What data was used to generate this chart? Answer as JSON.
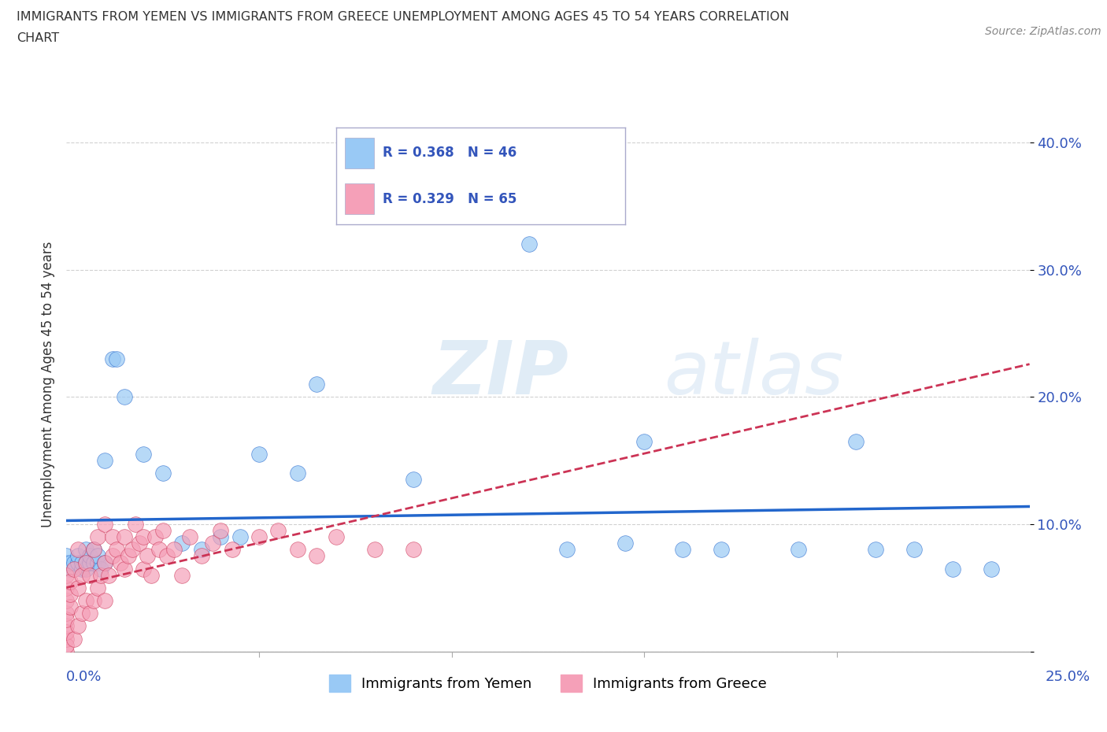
{
  "title_line1": "IMMIGRANTS FROM YEMEN VS IMMIGRANTS FROM GREECE UNEMPLOYMENT AMONG AGES 45 TO 54 YEARS CORRELATION",
  "title_line2": "CHART",
  "source": "Source: ZipAtlas.com",
  "ylabel": "Unemployment Among Ages 45 to 54 years",
  "color_yemen": "#99c9f5",
  "color_greece": "#f5a0b8",
  "color_trendline_yemen": "#2266cc",
  "color_trendline_greece": "#cc3355",
  "color_trendline_greece_dashed": "#cc3355",
  "xlim": [
    0.0,
    0.25
  ],
  "ylim": [
    0.0,
    0.42
  ],
  "ytick_vals": [
    0.1,
    0.2,
    0.3,
    0.4
  ],
  "ytick_labels": [
    "10.0%",
    "20.0%",
    "30.0%",
    "40.0%"
  ],
  "yemen_x": [
    0.0,
    0.0,
    0.001,
    0.001,
    0.002,
    0.003,
    0.003,
    0.004,
    0.004,
    0.005,
    0.005,
    0.005,
    0.006,
    0.006,
    0.007,
    0.007,
    0.008,
    0.008,
    0.009,
    0.01,
    0.01,
    0.012,
    0.013,
    0.015,
    0.02,
    0.025,
    0.03,
    0.035,
    0.04,
    0.045,
    0.05,
    0.06,
    0.065,
    0.09,
    0.12,
    0.13,
    0.145,
    0.15,
    0.16,
    0.17,
    0.19,
    0.205,
    0.21,
    0.22,
    0.23,
    0.24
  ],
  "yemen_y": [
    0.07,
    0.075,
    0.065,
    0.07,
    0.07,
    0.07,
    0.075,
    0.065,
    0.07,
    0.065,
    0.07,
    0.08,
    0.07,
    0.075,
    0.07,
    0.08,
    0.07,
    0.075,
    0.065,
    0.07,
    0.15,
    0.23,
    0.23,
    0.2,
    0.155,
    0.14,
    0.085,
    0.08,
    0.09,
    0.09,
    0.155,
    0.14,
    0.21,
    0.135,
    0.32,
    0.08,
    0.085,
    0.165,
    0.08,
    0.08,
    0.08,
    0.165,
    0.08,
    0.08,
    0.065,
    0.065
  ],
  "greece_x": [
    0.0,
    0.0,
    0.0,
    0.0,
    0.0,
    0.0,
    0.0,
    0.0,
    0.0,
    0.0,
    0.001,
    0.001,
    0.001,
    0.002,
    0.002,
    0.003,
    0.003,
    0.003,
    0.004,
    0.004,
    0.005,
    0.005,
    0.006,
    0.006,
    0.007,
    0.007,
    0.008,
    0.008,
    0.009,
    0.01,
    0.01,
    0.01,
    0.011,
    0.012,
    0.012,
    0.013,
    0.014,
    0.015,
    0.015,
    0.016,
    0.017,
    0.018,
    0.019,
    0.02,
    0.02,
    0.021,
    0.022,
    0.023,
    0.024,
    0.025,
    0.026,
    0.028,
    0.03,
    0.032,
    0.035,
    0.038,
    0.04,
    0.043,
    0.05,
    0.055,
    0.06,
    0.065,
    0.07,
    0.08,
    0.09
  ],
  "greece_y": [
    0.0,
    0.01,
    0.02,
    0.03,
    0.04,
    0.05,
    0.06,
    0.005,
    0.015,
    0.025,
    0.035,
    0.045,
    0.055,
    0.01,
    0.065,
    0.02,
    0.05,
    0.08,
    0.03,
    0.06,
    0.04,
    0.07,
    0.03,
    0.06,
    0.04,
    0.08,
    0.05,
    0.09,
    0.06,
    0.04,
    0.07,
    0.1,
    0.06,
    0.09,
    0.075,
    0.08,
    0.07,
    0.065,
    0.09,
    0.075,
    0.08,
    0.1,
    0.085,
    0.065,
    0.09,
    0.075,
    0.06,
    0.09,
    0.08,
    0.095,
    0.075,
    0.08,
    0.06,
    0.09,
    0.075,
    0.085,
    0.095,
    0.08,
    0.09,
    0.095,
    0.08,
    0.075,
    0.09,
    0.08,
    0.08
  ]
}
